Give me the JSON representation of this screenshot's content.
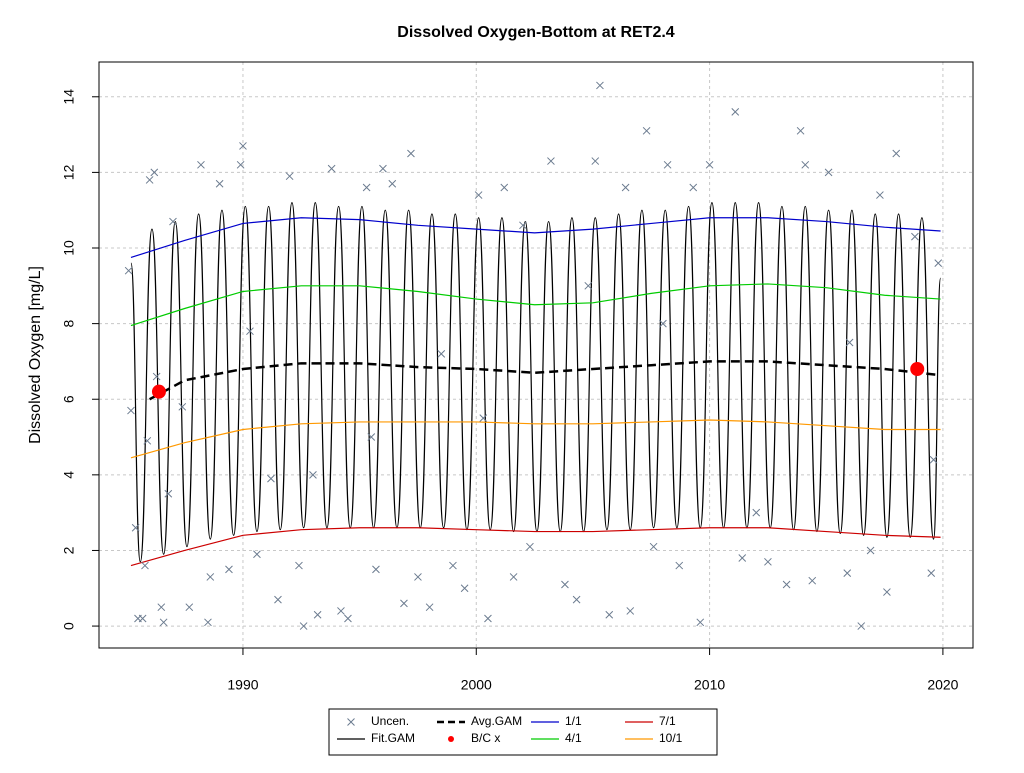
{
  "chart_data": {
    "type": "line",
    "title": "Dissolved Oxygen-Bottom at RET2.4",
    "y_label": "Dissolved Oxygen [mg/L]",
    "xlim": [
      1983.83,
      2021.29
    ],
    "ylim": [
      -0.58,
      14.92
    ],
    "xticks": [
      1990,
      2000,
      2010,
      2020
    ],
    "yticks": [
      0,
      2,
      4,
      6,
      8,
      10,
      12,
      14
    ],
    "grid": true,
    "legend_position": "bottom",
    "series": [
      {
        "name": "Uncen.",
        "type": "scatter",
        "marker": "x",
        "color": "#6b7b8f",
        "x": [
          1985.1,
          1985.2,
          1985.4,
          1985.5,
          1985.7,
          1985.8,
          1985.9,
          1986.0,
          1986.2,
          1986.3,
          1986.5,
          1986.6,
          1986.8,
          1987.0,
          1987.4,
          1987.7,
          1988.2,
          1988.5,
          1988.6,
          1989.0,
          1989.4,
          1989.9,
          1990.0,
          1990.3,
          1990.6,
          1991.2,
          1991.5,
          1992.0,
          1992.4,
          1992.6,
          1993.2,
          1993.8,
          1994.2,
          1994.5,
          1995.3,
          1995.7,
          1996.0,
          1996.4,
          1996.9,
          1997.2,
          1997.5,
          1998.0,
          1999.0,
          1999.5,
          2000.1,
          2000.5,
          2001.2,
          2001.6,
          2002.3,
          2003.2,
          2003.8,
          2004.3,
          2005.1,
          2005.3,
          2005.7,
          2006.4,
          2006.6,
          2007.3,
          2007.6,
          2008.2,
          2008.7,
          2009.3,
          2009.6,
          2010.0,
          2011.1,
          2011.4,
          2012.5,
          2013.3,
          2013.9,
          2014.1,
          2014.4,
          2015.1,
          2015.9,
          2016.5,
          2016.9,
          2017.3,
          2017.6,
          2018.0,
          2018.8,
          2019.5,
          2019.8,
          2019.6,
          2000.3,
          1995.5,
          2002.0,
          2008.0,
          1998.5,
          2012.0,
          2004.8,
          1993.0,
          2016.0
        ],
        "values": [
          9.4,
          5.7,
          2.6,
          0.2,
          0.2,
          1.6,
          4.9,
          11.8,
          12.0,
          6.6,
          0.5,
          0.1,
          3.5,
          10.7,
          5.8,
          0.5,
          12.2,
          0.1,
          1.3,
          11.7,
          1.5,
          12.2,
          12.7,
          7.8,
          1.9,
          3.9,
          0.7,
          11.9,
          1.6,
          0.0,
          0.3,
          12.1,
          0.4,
          0.2,
          11.6,
          1.5,
          12.1,
          11.7,
          0.6,
          12.5,
          1.3,
          0.5,
          1.6,
          1.0,
          11.4,
          0.2,
          11.6,
          1.3,
          2.1,
          12.3,
          1.1,
          0.7,
          12.3,
          14.3,
          0.3,
          11.6,
          0.4,
          13.1,
          2.1,
          12.2,
          1.6,
          11.6,
          0.1,
          12.2,
          13.6,
          1.8,
          1.7,
          1.1,
          13.1,
          12.2,
          1.2,
          12.0,
          1.4,
          0.0,
          2.0,
          11.4,
          0.9,
          12.5,
          10.3,
          1.4,
          9.6,
          4.4,
          5.5,
          5.0,
          10.6,
          8.0,
          7.2,
          3.0,
          9.0,
          4.0,
          7.5
        ]
      },
      {
        "name": "Fit.GAM",
        "color": "#000000",
        "smooth": true,
        "x": [
          1985.2,
          1985.6,
          1986.1,
          1986.6,
          1987.1,
          1987.6,
          1988.1,
          1988.6,
          1989.1,
          1989.6,
          1990.1,
          1990.6,
          1991.1,
          1991.6,
          1992.1,
          1992.6,
          1993.1,
          1993.6,
          1994.1,
          1994.6,
          1995.1,
          1995.6,
          1996.1,
          1996.6,
          1997.1,
          1997.6,
          1998.1,
          1998.6,
          1999.1,
          1999.6,
          2000.1,
          2000.6,
          2001.1,
          2001.6,
          2002.1,
          2002.6,
          2003.1,
          2003.6,
          2004.1,
          2004.6,
          2005.1,
          2005.6,
          2006.1,
          2006.6,
          2007.1,
          2007.6,
          2008.1,
          2008.6,
          2009.1,
          2009.6,
          2010.1,
          2010.6,
          2011.1,
          2011.6,
          2012.1,
          2012.6,
          2013.1,
          2013.6,
          2014.1,
          2014.6,
          2015.1,
          2015.6,
          2016.1,
          2016.6,
          2017.1,
          2017.6,
          2018.1,
          2018.6,
          2019.1,
          2019.6,
          2019.9
        ],
        "values": [
          9.6,
          1.7,
          10.5,
          1.9,
          10.7,
          2.1,
          10.9,
          2.3,
          11.0,
          2.4,
          11.1,
          2.5,
          11.1,
          2.55,
          11.2,
          2.6,
          11.2,
          2.6,
          11.1,
          2.6,
          11.1,
          2.6,
          11.0,
          2.6,
          11.0,
          2.6,
          10.9,
          2.6,
          10.9,
          2.55,
          10.8,
          2.55,
          10.8,
          2.5,
          10.7,
          2.5,
          10.7,
          2.5,
          10.8,
          2.5,
          10.8,
          2.55,
          10.9,
          2.55,
          11.0,
          2.6,
          11.0,
          2.6,
          11.1,
          2.6,
          11.2,
          2.6,
          11.2,
          2.6,
          11.2,
          2.6,
          11.1,
          2.55,
          11.1,
          2.5,
          11.0,
          2.45,
          11.0,
          2.4,
          10.9,
          2.35,
          10.9,
          2.35,
          10.8,
          2.3,
          9.2
        ]
      },
      {
        "name": "Avg.GAM",
        "color": "#000000",
        "dash": true,
        "x": [
          1986,
          1987.5,
          1990,
          1992.5,
          1995,
          1997.5,
          2000,
          2002.5,
          2005,
          2007.5,
          2010,
          2012.5,
          2015,
          2017.5,
          2019.7
        ],
        "values": [
          6.0,
          6.5,
          6.8,
          6.95,
          6.95,
          6.85,
          6.8,
          6.7,
          6.8,
          6.9,
          7.0,
          7.0,
          6.9,
          6.8,
          6.65
        ]
      },
      {
        "name": "B/C x",
        "type": "scatter",
        "marker": "dot",
        "color": "#ff0000",
        "x": [
          1986.4,
          2018.9
        ],
        "values": [
          6.2,
          6.8
        ]
      },
      {
        "name": "1/1",
        "color": "#0000cc",
        "x": [
          1985.2,
          1987.5,
          1990,
          1992.5,
          1995,
          1997.5,
          2000,
          2002.5,
          2005,
          2007.5,
          2010,
          2012.5,
          2015,
          2017.5,
          2019.9
        ],
        "values": [
          9.75,
          10.2,
          10.65,
          10.8,
          10.75,
          10.6,
          10.5,
          10.4,
          10.5,
          10.65,
          10.8,
          10.8,
          10.7,
          10.55,
          10.45
        ]
      },
      {
        "name": "4/1",
        "color": "#00cc00",
        "x": [
          1985.2,
          1987.5,
          1990,
          1992.5,
          1995,
          1997.5,
          2000,
          2002.5,
          2005,
          2007.5,
          2010,
          2012.5,
          2015,
          2017.5,
          2019.9
        ],
        "values": [
          7.95,
          8.4,
          8.85,
          9.0,
          9.0,
          8.85,
          8.65,
          8.5,
          8.55,
          8.8,
          9.0,
          9.05,
          8.95,
          8.75,
          8.65
        ]
      },
      {
        "name": "7/1",
        "color": "#cc0000",
        "x": [
          1985.2,
          1987.5,
          1990,
          1992.5,
          1995,
          1997.5,
          2000,
          2002.5,
          2005,
          2007.5,
          2010,
          2012.5,
          2015,
          2017.5,
          2019.9
        ],
        "values": [
          1.6,
          2.0,
          2.4,
          2.55,
          2.6,
          2.6,
          2.55,
          2.5,
          2.5,
          2.55,
          2.6,
          2.6,
          2.5,
          2.4,
          2.35
        ]
      },
      {
        "name": "10/1",
        "color": "#ff9900",
        "x": [
          1985.2,
          1987.5,
          1990,
          1992.5,
          1995,
          1997.5,
          2000,
          2002.5,
          2005,
          2007.5,
          2010,
          2012.5,
          2015,
          2017.5,
          2019.9
        ],
        "values": [
          4.45,
          4.85,
          5.2,
          5.35,
          5.4,
          5.4,
          5.4,
          5.35,
          5.35,
          5.4,
          5.45,
          5.4,
          5.3,
          5.2,
          5.2
        ]
      }
    ]
  }
}
